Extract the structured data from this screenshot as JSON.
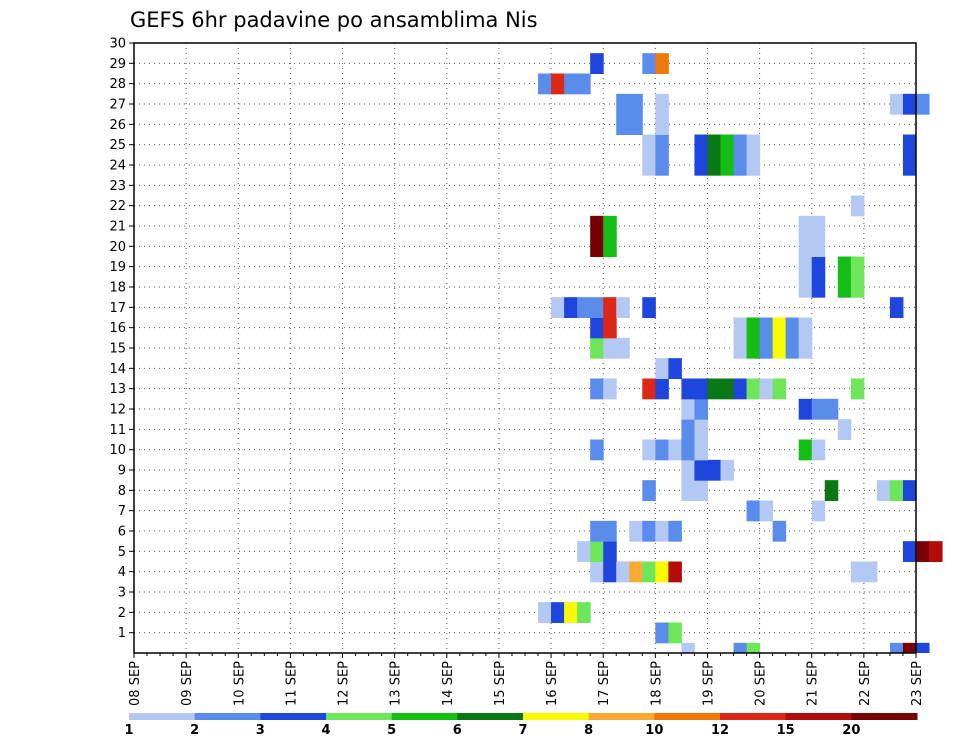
{
  "chart_data": {
    "type": "heatmap",
    "title": "GEFS 6hr padavine po ansamblima Nis",
    "x_labels": [
      "08 SEP",
      "09 SEP",
      "10 SEP",
      "11 SEP",
      "12 SEP",
      "13 SEP",
      "14 SEP",
      "15 SEP",
      "16 SEP",
      "17 SEP",
      "18 SEP",
      "19 SEP",
      "20 SEP",
      "21 SEP",
      "22 SEP",
      "23 SEP"
    ],
    "x_range_steps": [
      0,
      60
    ],
    "y_labels": [
      "1",
      "2",
      "3",
      "4",
      "5",
      "6",
      "7",
      "8",
      "9",
      "10",
      "11",
      "12",
      "13",
      "14",
      "15",
      "16",
      "17",
      "18",
      "19",
      "20",
      "21",
      "22",
      "23",
      "24",
      "25",
      "26",
      "27",
      "28",
      "29",
      "30"
    ],
    "y_range": [
      0,
      30
    ],
    "grid": true,
    "colorbar": {
      "ticks": [
        "1",
        "2",
        "3",
        "4",
        "5",
        "6",
        "7",
        "8",
        "10",
        "12",
        "15",
        "20"
      ],
      "colors": [
        "#b4c8f4",
        "#5a8cec",
        "#1e46dc",
        "#6ee65a",
        "#14be14",
        "#0a7814",
        "#fafa00",
        "#faaa32",
        "#f0780a",
        "#dc2814",
        "#b40a0a",
        "#780000"
      ]
    },
    "cells": [
      [
        29,
        1,
        0
      ],
      [
        36,
        2,
        0
      ],
      [
        37,
        2,
        3
      ],
      [
        45,
        3,
        0
      ],
      [
        46,
        3,
        3
      ],
      [
        60,
        3,
        1
      ],
      [
        61,
        3,
        2
      ],
      [
        15,
        4,
        0
      ],
      [
        16,
        4,
        2
      ],
      [
        17,
        4,
        2
      ],
      [
        15,
        4,
        1
      ],
      [
        18,
        4,
        3
      ],
      [
        19,
        4,
        2
      ],
      [
        20,
        4,
        0
      ],
      [
        38,
        4,
        1
      ],
      [
        45,
        4,
        0
      ],
      [
        53,
        3,
        1
      ],
      [
        54,
        3,
        2
      ],
      [
        55,
        3,
        0
      ],
      [
        57,
        3,
        1
      ],
      [
        46,
        4,
        6
      ],
      [
        58,
        4,
        2
      ],
      [
        59,
        4,
        6
      ],
      [
        60,
        4,
        11
      ],
      [
        16,
        3,
        3
      ],
      [
        17,
        3,
        3
      ],
      [
        18,
        2,
        0
      ],
      [
        19,
        2,
        1
      ],
      [
        20,
        2,
        6
      ],
      [
        21,
        2,
        1
      ],
      [
        25,
        2,
        8
      ],
      [
        26,
        2,
        9
      ],
      [
        27,
        2,
        9
      ],
      [
        36,
        2,
        1
      ],
      [
        37,
        2,
        1
      ],
      [
        38,
        2,
        0
      ],
      [
        39,
        2,
        0
      ],
      [
        40,
        2,
        1
      ],
      [
        41,
        2,
        0
      ],
      [
        28,
        3,
        10
      ],
      [
        29,
        3,
        3
      ],
      [
        30,
        4,
        2
      ],
      [
        31,
        4,
        1
      ],
      [
        31,
        3,
        3
      ],
      [
        32,
        2,
        1
      ],
      [
        34,
        2,
        7
      ],
      [
        35,
        2,
        6
      ],
      [
        36,
        2,
        4
      ],
      [
        43,
        2,
        1
      ],
      [
        24,
        3,
        9
      ],
      [
        25,
        3,
        8
      ],
      [
        26,
        3,
        1
      ],
      [
        27,
        2,
        0
      ],
      [
        28,
        2,
        1
      ],
      [
        29,
        2,
        2
      ],
      [
        30,
        2,
        0
      ],
      [
        31,
        2,
        0
      ],
      [
        32,
        2,
        3
      ],
      [
        33,
        3,
        1
      ],
      [
        36,
        3,
        0
      ],
      [
        37,
        3,
        0
      ],
      [
        38,
        3,
        2
      ],
      [
        39,
        3,
        2
      ],
      [
        42,
        3,
        1
      ],
      [
        45,
        3,
        0
      ],
      [
        46,
        3,
        0
      ],
      [
        52,
        3,
        0
      ],
      [
        55,
        3,
        3
      ],
      [
        56,
        3,
        2
      ],
      [
        44,
        2,
        1
      ],
      [
        46,
        2,
        0
      ],
      [
        47,
        2,
        8
      ],
      [
        49,
        2,
        1
      ],
      [
        52,
        2,
        0
      ]
    ],
    "cells_rows": [
      [
        1,
        [
          [
            40,
            1
          ],
          [
            41,
            3
          ]
        ]
      ],
      [
        2,
        [
          [
            31,
            0
          ],
          [
            32,
            2
          ],
          [
            33,
            6
          ],
          [
            34,
            3
          ]
        ]
      ],
      [
        4,
        [
          [
            35,
            0
          ],
          [
            36,
            2
          ],
          [
            37,
            0
          ],
          [
            38,
            7
          ],
          [
            39,
            3
          ],
          [
            40,
            6
          ],
          [
            41,
            10
          ],
          [
            55,
            0
          ],
          [
            56,
            0
          ]
        ]
      ],
      [
        5,
        [
          [
            34,
            0
          ],
          [
            35,
            3
          ],
          [
            36,
            2
          ],
          [
            59,
            2
          ],
          [
            60,
            11
          ],
          [
            61,
            10
          ]
        ]
      ],
      [
        6,
        [
          [
            35,
            1
          ],
          [
            36,
            1
          ],
          [
            38,
            0
          ],
          [
            39,
            1
          ],
          [
            40,
            0
          ],
          [
            41,
            1
          ],
          [
            49,
            1
          ]
        ]
      ],
      [
        7,
        [
          [
            47,
            1
          ],
          [
            48,
            0
          ],
          [
            52,
            0
          ]
        ]
      ],
      [
        8,
        [
          [
            39,
            1
          ],
          [
            42,
            0
          ],
          [
            43,
            0
          ],
          [
            53,
            5
          ],
          [
            57,
            0
          ],
          [
            58,
            3
          ],
          [
            59,
            2
          ]
        ]
      ],
      [
        9,
        [
          [
            42,
            0
          ],
          [
            43,
            2
          ],
          [
            44,
            2
          ],
          [
            45,
            0
          ]
        ]
      ],
      [
        10,
        [
          [
            35,
            1
          ],
          [
            39,
            0
          ],
          [
            40,
            1
          ],
          [
            41,
            0
          ],
          [
            42,
            1
          ],
          [
            43,
            0
          ],
          [
            51,
            4
          ],
          [
            52,
            0
          ]
        ]
      ],
      [
        11,
        [
          [
            42,
            1
          ],
          [
            43,
            0
          ],
          [
            54,
            0
          ]
        ]
      ],
      [
        12,
        [
          [
            42,
            0
          ],
          [
            43,
            1
          ],
          [
            51,
            2
          ],
          [
            52,
            1
          ],
          [
            53,
            1
          ]
        ]
      ],
      [
        13,
        [
          [
            35,
            1
          ],
          [
            36,
            0
          ],
          [
            39,
            9
          ],
          [
            40,
            2
          ],
          [
            42,
            2
          ],
          [
            43,
            2
          ],
          [
            44,
            5
          ],
          [
            45,
            5
          ],
          [
            46,
            2
          ],
          [
            47,
            3
          ],
          [
            48,
            0
          ],
          [
            49,
            3
          ],
          [
            55,
            3
          ]
        ]
      ],
      [
        14,
        [
          [
            40,
            0
          ],
          [
            41,
            2
          ]
        ]
      ],
      [
        15,
        [
          [
            35,
            3
          ],
          [
            36,
            0
          ],
          [
            37,
            0
          ],
          [
            46,
            0
          ],
          [
            47,
            4
          ],
          [
            48,
            1
          ],
          [
            49,
            6
          ],
          [
            50,
            1
          ],
          [
            51,
            0
          ]
        ]
      ],
      [
        16,
        [
          [
            35,
            2
          ],
          [
            36,
            9
          ],
          [
            46,
            0
          ],
          [
            47,
            4
          ],
          [
            48,
            1
          ],
          [
            49,
            6
          ],
          [
            50,
            1
          ],
          [
            51,
            0
          ]
        ]
      ],
      [
        17,
        [
          [
            32,
            0
          ],
          [
            33,
            2
          ],
          [
            34,
            1
          ],
          [
            35,
            1
          ],
          [
            36,
            9
          ],
          [
            37,
            0
          ],
          [
            39,
            2
          ],
          [
            58,
            2
          ]
        ]
      ],
      [
        18,
        [
          [
            51,
            0
          ],
          [
            52,
            2
          ],
          [
            54,
            4
          ],
          [
            55,
            3
          ]
        ]
      ],
      [
        19,
        [
          [
            51,
            0
          ],
          [
            52,
            2
          ],
          [
            54,
            4
          ],
          [
            55,
            3
          ]
        ]
      ],
      [
        20,
        [
          [
            35,
            11
          ],
          [
            36,
            4
          ],
          [
            51,
            0
          ],
          [
            52,
            0
          ]
        ]
      ],
      [
        21,
        [
          [
            35,
            11
          ],
          [
            36,
            4
          ],
          [
            51,
            0
          ],
          [
            52,
            0
          ]
        ]
      ],
      [
        22,
        [
          [
            55,
            0
          ]
        ]
      ],
      [
        24,
        [
          [
            39,
            0
          ],
          [
            40,
            1
          ],
          [
            43,
            2
          ],
          [
            44,
            5
          ],
          [
            45,
            4
          ],
          [
            46,
            1
          ],
          [
            47,
            0
          ],
          [
            59,
            2
          ]
        ]
      ],
      [
        25,
        [
          [
            39,
            0
          ],
          [
            40,
            1
          ],
          [
            43,
            2
          ],
          [
            44,
            5
          ],
          [
            45,
            4
          ],
          [
            46,
            1
          ],
          [
            47,
            0
          ],
          [
            59,
            2
          ]
        ]
      ],
      [
        26,
        [
          [
            37,
            1
          ],
          [
            38,
            1
          ],
          [
            40,
            0
          ]
        ]
      ],
      [
        27,
        [
          [
            37,
            1
          ],
          [
            38,
            1
          ],
          [
            40,
            0
          ],
          [
            58,
            0
          ],
          [
            59,
            2
          ],
          [
            60,
            1
          ]
        ]
      ],
      [
        28,
        [
          [
            31,
            1
          ],
          [
            32,
            9
          ],
          [
            33,
            1
          ],
          [
            34,
            1
          ]
        ]
      ],
      [
        29,
        [
          [
            35,
            2
          ],
          [
            39,
            1
          ],
          [
            40,
            8
          ]
        ]
      ]
    ],
    "cells_bottom": [
      [
        42,
        0
      ],
      [
        46,
        1
      ],
      [
        47,
        3
      ],
      [
        58,
        1
      ],
      [
        59,
        11
      ],
      [
        60,
        2
      ]
    ]
  }
}
